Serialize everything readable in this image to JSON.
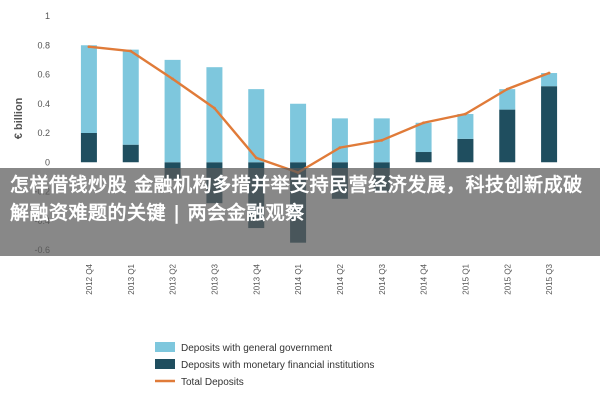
{
  "chart_data": {
    "type": "bar",
    "categories": [
      "2012 Q4",
      "2013 Q1",
      "2013 Q2",
      "2013 Q3",
      "2013 Q4",
      "2014 Q1",
      "2014 Q2",
      "2014 Q3",
      "2014 Q4",
      "2015 Q1",
      "2015 Q2",
      "2015 Q3"
    ],
    "series": [
      {
        "name": "Deposits with general government",
        "kind": "bar",
        "color": "#7ec7dd",
        "values": [
          0.6,
          0.65,
          0.7,
          0.65,
          0.5,
          0.4,
          0.3,
          0.3,
          0.2,
          0.17,
          0.14,
          0.09
        ]
      },
      {
        "name": "Deposits with monetary financial institutions",
        "kind": "bar",
        "color": "#1f4e5f",
        "values": [
          0.2,
          0.12,
          -0.12,
          -0.28,
          -0.45,
          -0.55,
          -0.25,
          -0.2,
          0.07,
          0.16,
          0.36,
          0.52
        ]
      },
      {
        "name": "Total Deposits",
        "kind": "line",
        "color": "#e07b39",
        "values": [
          0.79,
          0.76,
          0.57,
          0.37,
          0.03,
          -0.07,
          0.1,
          0.15,
          0.27,
          0.33,
          0.5,
          0.61
        ]
      }
    ],
    "ylabel": "€ billion",
    "ylim": [
      -0.6,
      1.0
    ],
    "yticks": [
      1,
      0.8,
      0.6,
      0.4,
      0.2,
      0,
      -0.2,
      -0.4,
      -0.6
    ],
    "ytick_labels": [
      "1",
      "0.8",
      "0.6",
      "0.4",
      "0.2",
      "0",
      "-0.2",
      "-0.4",
      "-0.6"
    ],
    "grid": false,
    "legend_position": "bottom-center"
  },
  "overlay": {
    "text": "怎样借钱炒股 金融机构多措并举支持民营经济发展，科技创新成破解融资难题的关键 | 两会金融观察"
  }
}
